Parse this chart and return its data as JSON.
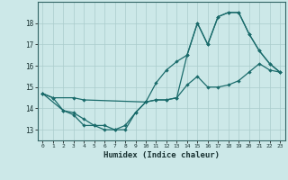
{
  "xlabel": "Humidex (Indice chaleur)",
  "background_color": "#cce8e8",
  "grid_color": "#aacccc",
  "line_color": "#1a6b6b",
  "xlim": [
    -0.5,
    23.5
  ],
  "ylim": [
    12.5,
    19.0
  ],
  "yticks": [
    13,
    14,
    15,
    16,
    17,
    18
  ],
  "xticks": [
    0,
    1,
    2,
    3,
    4,
    5,
    6,
    7,
    8,
    9,
    10,
    11,
    12,
    13,
    14,
    15,
    16,
    17,
    18,
    19,
    20,
    21,
    22,
    23
  ],
  "line1_x": [
    0,
    1,
    2,
    3,
    4,
    5,
    6,
    7,
    8,
    9,
    10,
    11,
    12,
    13,
    14,
    15,
    16,
    17,
    18,
    19,
    20,
    21,
    22,
    23
  ],
  "line1_y": [
    14.7,
    14.5,
    13.9,
    13.7,
    13.2,
    13.2,
    13.0,
    13.0,
    13.2,
    13.8,
    14.3,
    14.4,
    14.4,
    14.5,
    15.1,
    15.5,
    15.0,
    15.0,
    15.1,
    15.3,
    15.7,
    16.1,
    15.8,
    15.7
  ],
  "line2_x": [
    0,
    2,
    3,
    4,
    5,
    6,
    7,
    8,
    9,
    10,
    11,
    12,
    13,
    14,
    15,
    16,
    17,
    18,
    19,
    20,
    21,
    22,
    23
  ],
  "line2_y": [
    14.7,
    13.9,
    13.8,
    13.5,
    13.2,
    13.2,
    13.0,
    13.0,
    13.8,
    14.3,
    14.4,
    14.4,
    14.5,
    16.5,
    18.0,
    17.0,
    18.3,
    18.5,
    18.5,
    17.5,
    16.7,
    16.1,
    15.7
  ],
  "line3_x": [
    0,
    1,
    3,
    4,
    10,
    11,
    12,
    13,
    14,
    15,
    16,
    17,
    18,
    19,
    20,
    21,
    22,
    23
  ],
  "line3_y": [
    14.7,
    14.5,
    14.5,
    14.4,
    14.3,
    15.2,
    15.8,
    16.2,
    16.5,
    18.0,
    17.0,
    18.3,
    18.5,
    18.5,
    17.5,
    16.7,
    16.1,
    15.7
  ]
}
